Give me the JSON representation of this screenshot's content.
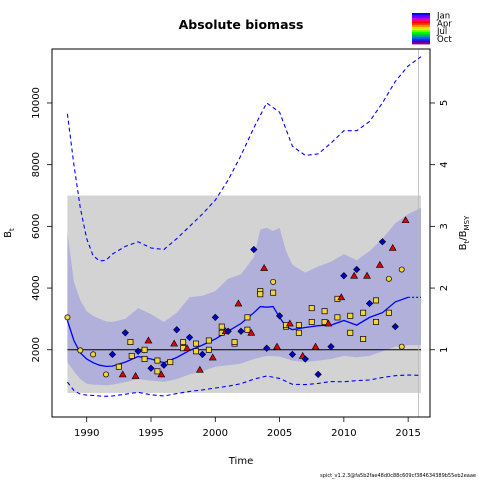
{
  "chart_data": {
    "type": "scatter",
    "title": "Absolute biomass",
    "xlabel": "Time",
    "ylabel_left": "B",
    "ylabel_left_sub": "t",
    "ylabel_right": "B",
    "ylabel_right_sub": "t",
    "ylabel_right_den": "B",
    "ylabel_right_den_sub": "MSY",
    "xlim": [
      1987.3,
      2016.7
    ],
    "ylim": [
      -180,
      11750
    ],
    "bmsy": 2000,
    "x_ticks": [
      1990,
      1995,
      2000,
      2005,
      2010,
      2015
    ],
    "y_ticks": [
      2000,
      4000,
      6000,
      8000,
      10000
    ],
    "y2_ticks": [
      1,
      2,
      3,
      4,
      5
    ],
    "legend_labels": [
      "Jan",
      "Apr",
      "Jul",
      "Oct"
    ],
    "vline_x": 2015.8,
    "data_interval_x": [
      1988.5,
      2016
    ],
    "legend_colors": [
      "#0000ff",
      "#4010ff",
      "#8000ff",
      "#c000ff",
      "#ff0066",
      "#ff0000",
      "#ff4400",
      "#ff8800",
      "#ffcc00",
      "#ccff00",
      "#66ff00",
      "#00ff00",
      "#00cc33",
      "#0099aa",
      "#0066ff",
      "#0033ff",
      "#4000c0",
      "#800080"
    ],
    "series": [
      {
        "name": "median",
        "x": [
          1988.5,
          1989,
          1989.5,
          1990,
          1990.5,
          1991,
          1991.5,
          1992,
          1993,
          1994,
          1995,
          1996,
          1997,
          1998,
          1999,
          2000,
          2001,
          2002,
          2003,
          2003.5,
          2004,
          2004.5,
          2005,
          2005.5,
          2006,
          2007,
          2008,
          2009,
          2010,
          2011,
          2012,
          2013,
          2014,
          2015
        ],
        "y": [
          2950,
          2300,
          1900,
          1700,
          1580,
          1500,
          1460,
          1470,
          1600,
          1780,
          1700,
          1580,
          1750,
          1980,
          2150,
          2350,
          2600,
          2850,
          3200,
          3400,
          3380,
          3400,
          3050,
          2750,
          2650,
          2720,
          2780,
          2800,
          2950,
          2800,
          3050,
          3200,
          3550,
          3700
        ]
      },
      {
        "name": "upper-ci",
        "x": [
          1988.5,
          1989,
          1989.5,
          1990,
          1990.5,
          1991,
          1991.5,
          1992,
          1993,
          1994,
          1995,
          1996,
          1997,
          1998,
          1999,
          2000,
          2001,
          2002,
          2003,
          2004,
          2005,
          2006,
          2007,
          2008,
          2009,
          2010,
          2011,
          2012,
          2013,
          2014,
          2015,
          2016
        ],
        "y": [
          9650,
          8000,
          6600,
          5600,
          5050,
          4880,
          4900,
          5100,
          5350,
          5500,
          5300,
          5250,
          5600,
          6000,
          6400,
          6850,
          7500,
          8300,
          9200,
          10000,
          9700,
          8600,
          8300,
          8350,
          8700,
          9100,
          9100,
          9400,
          10000,
          10700,
          11200,
          11500
        ]
      },
      {
        "name": "lower-ci",
        "x": [
          1988.5,
          1989,
          1989.5,
          1990,
          1990.5,
          1991,
          1991.5,
          1992,
          1993,
          1994,
          1995,
          1996,
          1997,
          1998,
          1999,
          2000,
          2001,
          2002,
          2003,
          2004,
          2005,
          2006,
          2007,
          2008,
          2009,
          2010,
          2011,
          2012,
          2013,
          2014,
          2015,
          2016
        ],
        "y": [
          950,
          680,
          560,
          530,
          520,
          500,
          490,
          500,
          560,
          620,
          540,
          500,
          580,
          650,
          700,
          760,
          820,
          900,
          1050,
          1150,
          1070,
          880,
          870,
          910,
          970,
          960,
          1000,
          1020,
          1100,
          1160,
          1180,
          1170
        ]
      },
      {
        "name": "band-upper",
        "x": [
          1988.5,
          1989,
          1989.5,
          1990,
          1990.5,
          1991,
          1991.5,
          1992,
          1993,
          1994,
          1995,
          1996,
          1997,
          1998,
          1999,
          2000,
          2001,
          2002,
          2003,
          2003.5,
          2004,
          2004.5,
          2005,
          2005.5,
          2006,
          2007,
          2008,
          2009,
          2010,
          2011,
          2012,
          2013,
          2014,
          2015,
          2016
        ],
        "y": [
          5800,
          4200,
          3600,
          3250,
          3100,
          3000,
          2920,
          2900,
          3000,
          3350,
          3150,
          2900,
          3200,
          3700,
          3750,
          3900,
          4300,
          4450,
          5000,
          5900,
          5950,
          5850,
          5950,
          5200,
          4750,
          4500,
          4700,
          4850,
          5100,
          4900,
          5200,
          5600,
          6100,
          6400,
          6600
        ]
      },
      {
        "name": "band-lower",
        "x": [
          1988.5,
          1989,
          1989.5,
          1990,
          1990.5,
          1991,
          1991.5,
          1992,
          1993,
          1994,
          1995,
          1996,
          1997,
          1998,
          1999,
          2000,
          2001,
          2002,
          2003,
          2004,
          2005,
          2006,
          2007,
          2008,
          2009,
          2010,
          2011,
          2012,
          2013,
          2014,
          2015,
          2016
        ],
        "y": [
          1600,
          1300,
          1050,
          900,
          870,
          860,
          850,
          870,
          950,
          1050,
          1000,
          960,
          1050,
          1200,
          1300,
          1450,
          1500,
          1550,
          1700,
          1800,
          1780,
          1650,
          1600,
          1650,
          1700,
          1800,
          1760,
          1800,
          1950,
          2100,
          2150,
          2150
        ]
      }
    ],
    "forecast": {
      "x": [
        2015,
        2016
      ],
      "median": [
        3700,
        3700
      ]
    },
    "points": [
      {
        "x": 1988.5,
        "y": 3050,
        "shape": "circle",
        "color": "#f5d33a"
      },
      {
        "x": 1989.5,
        "y": 1980,
        "shape": "circle",
        "color": "#f5d33a"
      },
      {
        "x": 1990.5,
        "y": 1850,
        "shape": "circle",
        "color": "#f5d33a"
      },
      {
        "x": 1991.5,
        "y": 1200,
        "shape": "circle",
        "color": "#f5d33a"
      },
      {
        "x": 1992,
        "y": 1850,
        "shape": "diamond",
        "color": "#0000cc"
      },
      {
        "x": 1992.5,
        "y": 1450,
        "shape": "square",
        "color": "#f5d33a"
      },
      {
        "x": 1992.8,
        "y": 1200,
        "shape": "triangle",
        "color": "#dd0000"
      },
      {
        "x": 1993,
        "y": 2550,
        "shape": "diamond",
        "color": "#0000cc"
      },
      {
        "x": 1993.4,
        "y": 2250,
        "shape": "square",
        "color": "#f5d33a"
      },
      {
        "x": 1993.5,
        "y": 1800,
        "shape": "square",
        "color": "#f5d33a"
      },
      {
        "x": 1993.8,
        "y": 1150,
        "shape": "triangle",
        "color": "#dd0000"
      },
      {
        "x": 1994,
        "y": 1950,
        "shape": "diamond",
        "color": "#0000cc"
      },
      {
        "x": 1994.5,
        "y": 1700,
        "shape": "square",
        "color": "#f5d33a"
      },
      {
        "x": 1994.5,
        "y": 2000,
        "shape": "square",
        "color": "#f5d33a"
      },
      {
        "x": 1994.8,
        "y": 2300,
        "shape": "triangle",
        "color": "#dd0000"
      },
      {
        "x": 1995,
        "y": 1400,
        "shape": "diamond",
        "color": "#0000cc"
      },
      {
        "x": 1995.5,
        "y": 1650,
        "shape": "square",
        "color": "#f5d33a"
      },
      {
        "x": 1995.5,
        "y": 1300,
        "shape": "square",
        "color": "#f5d33a"
      },
      {
        "x": 1995.8,
        "y": 1200,
        "shape": "triangle",
        "color": "#dd0000"
      },
      {
        "x": 1996,
        "y": 1500,
        "shape": "diamond",
        "color": "#0000cc"
      },
      {
        "x": 1996.5,
        "y": 1600,
        "shape": "square",
        "color": "#f5d33a"
      },
      {
        "x": 1996.8,
        "y": 2200,
        "shape": "triangle",
        "color": "#dd0000"
      },
      {
        "x": 1997,
        "y": 2650,
        "shape": "diamond",
        "color": "#0000cc"
      },
      {
        "x": 1997.5,
        "y": 2250,
        "shape": "square",
        "color": "#f5d33a"
      },
      {
        "x": 1997.5,
        "y": 2050,
        "shape": "square",
        "color": "#f5d33a"
      },
      {
        "x": 1997.8,
        "y": 2050,
        "shape": "triangle",
        "color": "#dd0000"
      },
      {
        "x": 1998,
        "y": 2400,
        "shape": "diamond",
        "color": "#0000cc"
      },
      {
        "x": 1998.5,
        "y": 2200,
        "shape": "square",
        "color": "#f5d33a"
      },
      {
        "x": 1998.5,
        "y": 1950,
        "shape": "square",
        "color": "#f5d33a"
      },
      {
        "x": 1998.8,
        "y": 1350,
        "shape": "triangle",
        "color": "#dd0000"
      },
      {
        "x": 1999,
        "y": 1850,
        "shape": "diamond",
        "color": "#0000cc"
      },
      {
        "x": 1999.5,
        "y": 2300,
        "shape": "square",
        "color": "#f5d33a"
      },
      {
        "x": 1999.5,
        "y": 2000,
        "shape": "square",
        "color": "#f5d33a"
      },
      {
        "x": 1999.8,
        "y": 1750,
        "shape": "triangle",
        "color": "#dd0000"
      },
      {
        "x": 2000,
        "y": 3050,
        "shape": "diamond",
        "color": "#0000cc"
      },
      {
        "x": 2000.5,
        "y": 2750,
        "shape": "square",
        "color": "#f5d33a"
      },
      {
        "x": 2000.5,
        "y": 2550,
        "shape": "square",
        "color": "#f5d33a"
      },
      {
        "x": 2000.8,
        "y": 2600,
        "shape": "triangle",
        "color": "#dd0000"
      },
      {
        "x": 2001,
        "y": 2600,
        "shape": "diamond",
        "color": "#0000cc"
      },
      {
        "x": 2001.5,
        "y": 2200,
        "shape": "square",
        "color": "#f5d33a"
      },
      {
        "x": 2001.5,
        "y": 2250,
        "shape": "square",
        "color": "#f5d33a"
      },
      {
        "x": 2001.8,
        "y": 3500,
        "shape": "triangle",
        "color": "#dd0000"
      },
      {
        "x": 2002,
        "y": 2600,
        "shape": "diamond",
        "color": "#0000cc"
      },
      {
        "x": 2002.5,
        "y": 3050,
        "shape": "square",
        "color": "#f5d33a"
      },
      {
        "x": 2002.5,
        "y": 2650,
        "shape": "square",
        "color": "#f5d33a"
      },
      {
        "x": 2002.8,
        "y": 2550,
        "shape": "triangle",
        "color": "#dd0000"
      },
      {
        "x": 2003,
        "y": 5250,
        "shape": "diamond",
        "color": "#0000cc"
      },
      {
        "x": 2003.5,
        "y": 3900,
        "shape": "square",
        "color": "#f5d33a"
      },
      {
        "x": 2003.5,
        "y": 3800,
        "shape": "square",
        "color": "#f5d33a"
      },
      {
        "x": 2003.8,
        "y": 4650,
        "shape": "triangle",
        "color": "#dd0000"
      },
      {
        "x": 2004,
        "y": 2050,
        "shape": "diamond",
        "color": "#0000cc"
      },
      {
        "x": 2004.5,
        "y": 4200,
        "shape": "circle",
        "color": "#f5d33a"
      },
      {
        "x": 2004.5,
        "y": 3850,
        "shape": "square",
        "color": "#f5d33a"
      },
      {
        "x": 2004.8,
        "y": 2100,
        "shape": "triangle",
        "color": "#dd0000"
      },
      {
        "x": 2005,
        "y": 3100,
        "shape": "diamond",
        "color": "#0000cc"
      },
      {
        "x": 2005.5,
        "y": 2750,
        "shape": "square",
        "color": "#f5d33a"
      },
      {
        "x": 2005.5,
        "y": 2800,
        "shape": "square",
        "color": "#f5d33a"
      },
      {
        "x": 2005.8,
        "y": 2850,
        "shape": "triangle",
        "color": "#dd0000"
      },
      {
        "x": 2006,
        "y": 1850,
        "shape": "diamond",
        "color": "#0000cc"
      },
      {
        "x": 2006.5,
        "y": 2550,
        "shape": "square",
        "color": "#f5d33a"
      },
      {
        "x": 2006.5,
        "y": 2800,
        "shape": "square",
        "color": "#f5d33a"
      },
      {
        "x": 2006.8,
        "y": 1800,
        "shape": "triangle",
        "color": "#dd0000"
      },
      {
        "x": 2007,
        "y": 1700,
        "shape": "diamond",
        "color": "#0000cc"
      },
      {
        "x": 2007.5,
        "y": 2900,
        "shape": "square",
        "color": "#f5d33a"
      },
      {
        "x": 2007.5,
        "y": 3350,
        "shape": "square",
        "color": "#f5d33a"
      },
      {
        "x": 2007.8,
        "y": 2100,
        "shape": "triangle",
        "color": "#dd0000"
      },
      {
        "x": 2008,
        "y": 1200,
        "shape": "diamond",
        "color": "#0000cc"
      },
      {
        "x": 2008.5,
        "y": 3250,
        "shape": "square",
        "color": "#f5d33a"
      },
      {
        "x": 2008.5,
        "y": 2900,
        "shape": "square",
        "color": "#f5d33a"
      },
      {
        "x": 2008.8,
        "y": 2850,
        "shape": "triangle",
        "color": "#dd0000"
      },
      {
        "x": 2009,
        "y": 2100,
        "shape": "diamond",
        "color": "#0000cc"
      },
      {
        "x": 2009.5,
        "y": 3050,
        "shape": "square",
        "color": "#f5d33a"
      },
      {
        "x": 2009.5,
        "y": 3650,
        "shape": "square",
        "color": "#f5d33a"
      },
      {
        "x": 2009.8,
        "y": 3700,
        "shape": "triangle",
        "color": "#dd0000"
      },
      {
        "x": 2010,
        "y": 4400,
        "shape": "diamond",
        "color": "#0000cc"
      },
      {
        "x": 2010.5,
        "y": 3100,
        "shape": "square",
        "color": "#f5d33a"
      },
      {
        "x": 2010.5,
        "y": 2550,
        "shape": "square",
        "color": "#f5d33a"
      },
      {
        "x": 2010.8,
        "y": 4400,
        "shape": "triangle",
        "color": "#dd0000"
      },
      {
        "x": 2011,
        "y": 4600,
        "shape": "diamond",
        "color": "#0000cc"
      },
      {
        "x": 2011.5,
        "y": 3200,
        "shape": "square",
        "color": "#f5d33a"
      },
      {
        "x": 2011.5,
        "y": 2350,
        "shape": "square",
        "color": "#f5d33a"
      },
      {
        "x": 2011.8,
        "y": 4400,
        "shape": "triangle",
        "color": "#dd0000"
      },
      {
        "x": 2012,
        "y": 3500,
        "shape": "diamond",
        "color": "#0000cc"
      },
      {
        "x": 2012.5,
        "y": 3600,
        "shape": "square",
        "color": "#f5d33a"
      },
      {
        "x": 2012.5,
        "y": 2900,
        "shape": "square",
        "color": "#f5d33a"
      },
      {
        "x": 2012.8,
        "y": 4750,
        "shape": "triangle",
        "color": "#dd0000"
      },
      {
        "x": 2013,
        "y": 5500,
        "shape": "diamond",
        "color": "#0000cc"
      },
      {
        "x": 2013.5,
        "y": 4300,
        "shape": "circle",
        "color": "#f5d33a"
      },
      {
        "x": 2013.5,
        "y": 3200,
        "shape": "square",
        "color": "#f5d33a"
      },
      {
        "x": 2013.8,
        "y": 5300,
        "shape": "triangle",
        "color": "#dd0000"
      },
      {
        "x": 2014,
        "y": 2750,
        "shape": "diamond",
        "color": "#0000cc"
      },
      {
        "x": 2014.5,
        "y": 4600,
        "shape": "circle",
        "color": "#f5d33a"
      },
      {
        "x": 2014.5,
        "y": 2100,
        "shape": "circle",
        "color": "#f5d33a"
      },
      {
        "x": 2014.8,
        "y": 6200,
        "shape": "triangle",
        "color": "#dd0000"
      }
    ]
  },
  "footer_text": "spict_v1.2.3@fa5b2fae48d0c88c609cf384634389b55eb2eaae"
}
